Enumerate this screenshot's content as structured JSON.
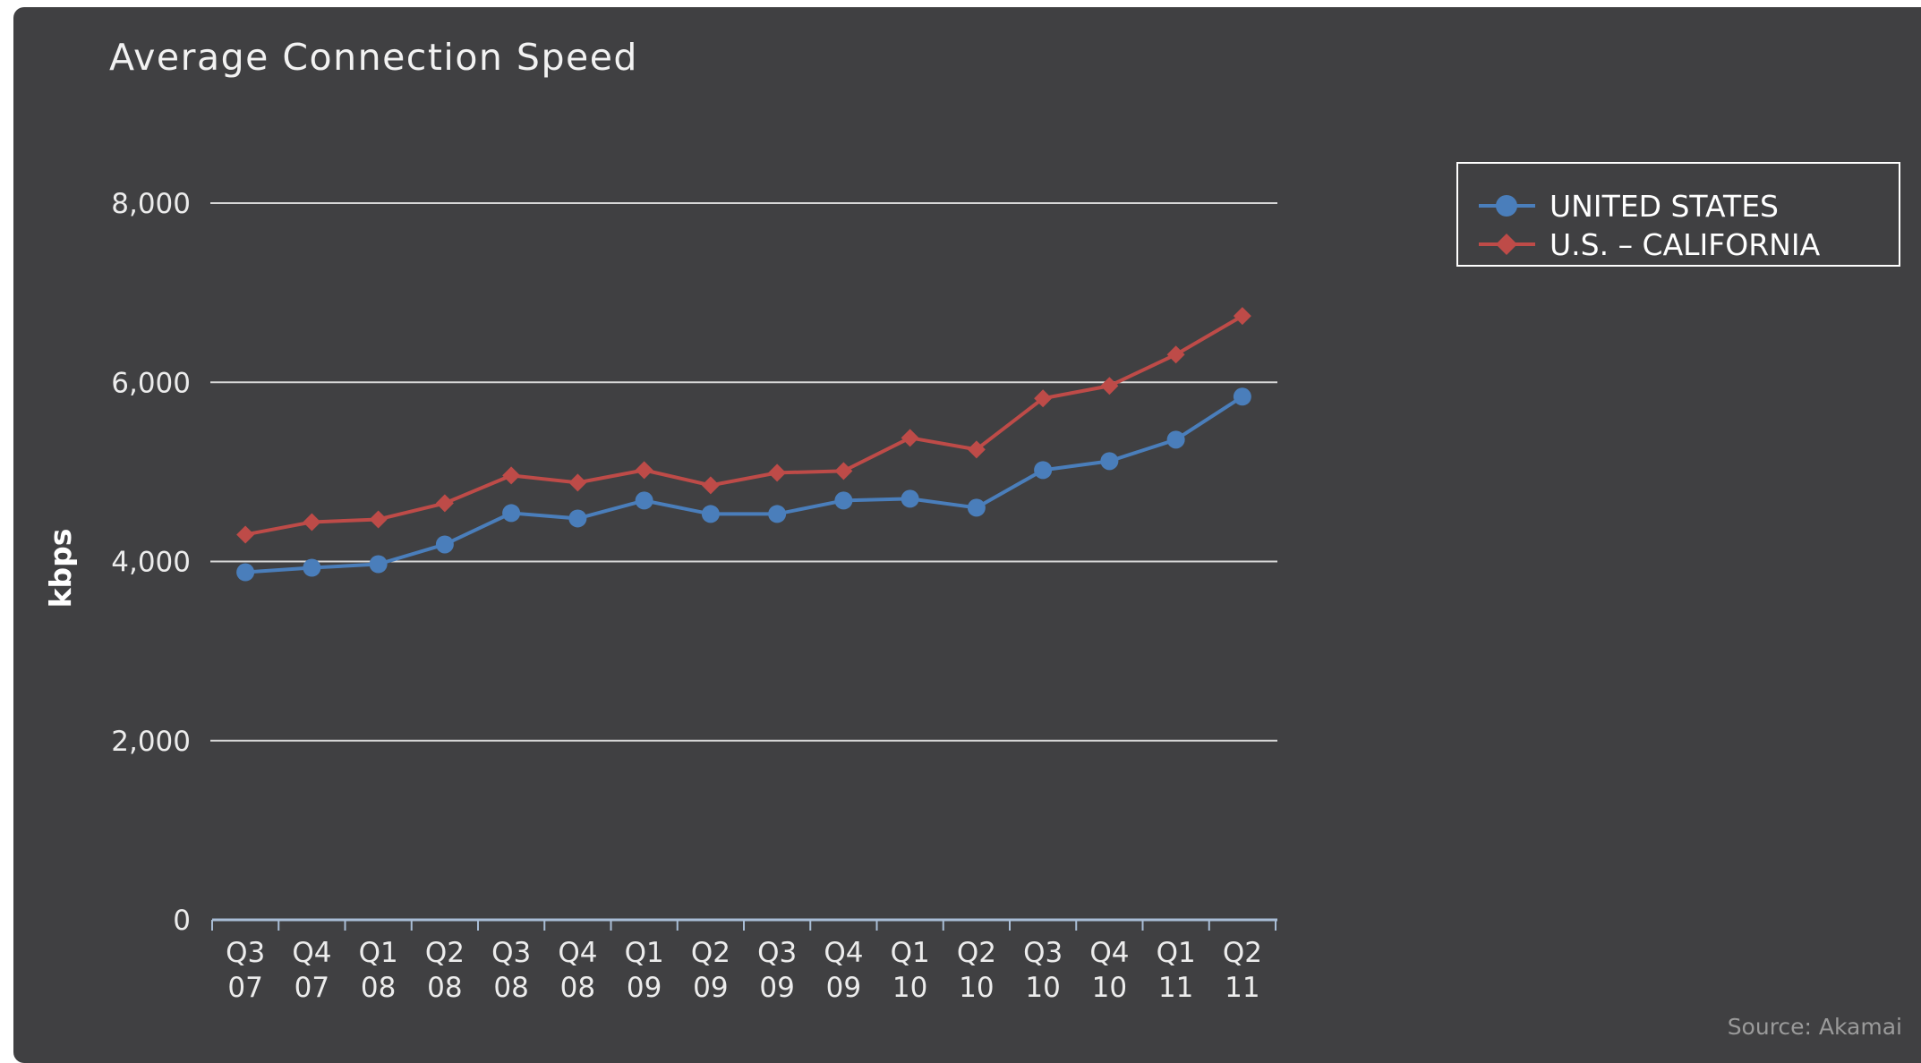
{
  "chart_data": {
    "type": "line",
    "title": "Average Connection Speed",
    "ylabel": "kbps",
    "xlabel": "",
    "ylim": [
      0,
      8000
    ],
    "yticks": [
      0,
      2000,
      4000,
      6000,
      8000
    ],
    "ytick_labels": [
      "0",
      "2,000",
      "4,000",
      "6,000",
      "8,000"
    ],
    "grid": true,
    "legend_position": "top-right",
    "categories": [
      [
        "Q3",
        "07"
      ],
      [
        "Q4",
        "07"
      ],
      [
        "Q1",
        "08"
      ],
      [
        "Q2",
        "08"
      ],
      [
        "Q3",
        "08"
      ],
      [
        "Q4",
        "08"
      ],
      [
        "Q1",
        "09"
      ],
      [
        "Q2",
        "09"
      ],
      [
        "Q3",
        "09"
      ],
      [
        "Q4",
        "09"
      ],
      [
        "Q1",
        "10"
      ],
      [
        "Q2",
        "10"
      ],
      [
        "Q3",
        "10"
      ],
      [
        "Q4",
        "10"
      ],
      [
        "Q1",
        "11"
      ],
      [
        "Q2",
        "11"
      ]
    ],
    "series": [
      {
        "name": "UNITED STATES",
        "color": "#4a7ebb",
        "marker": "circle",
        "values": [
          3880,
          3930,
          3970,
          4190,
          4540,
          4480,
          4680,
          4530,
          4530,
          4680,
          4700,
          4600,
          5020,
          5120,
          5360,
          5840
        ]
      },
      {
        "name": "U.S. – CALIFORNIA",
        "color": "#be4b48",
        "marker": "diamond",
        "values": [
          4300,
          4440,
          4470,
          4650,
          4960,
          4880,
          5020,
          4850,
          4990,
          5010,
          5380,
          5250,
          5820,
          5960,
          6310,
          6740
        ]
      }
    ],
    "source": "Source: Akamai"
  }
}
